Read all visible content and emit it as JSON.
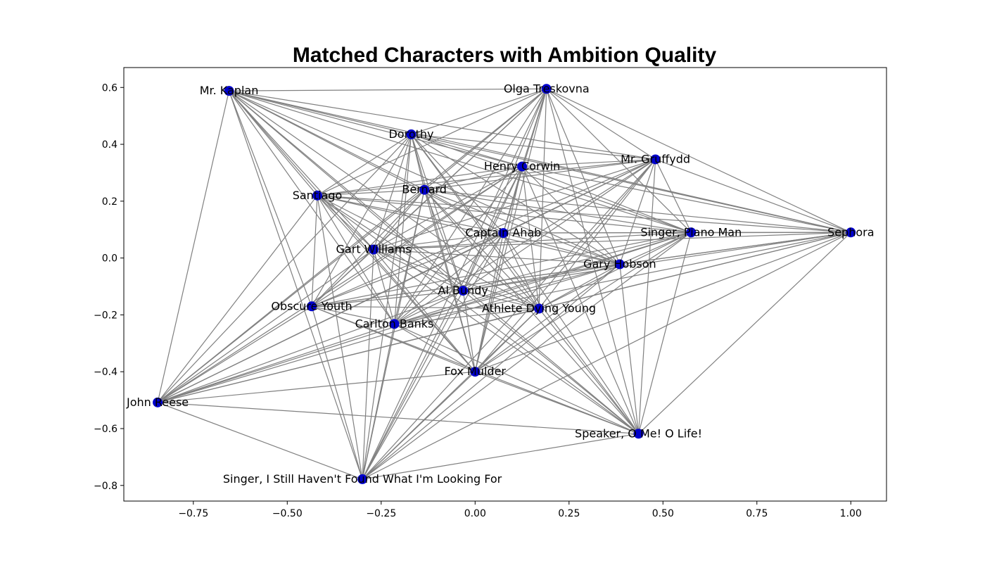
{
  "chart_data": {
    "type": "scatter",
    "subtype": "network-graph",
    "title": "Matched Characters with Ambition Quality",
    "xlabel": "",
    "ylabel": "",
    "xlim": [
      -0.935,
      1.095
    ],
    "ylim": [
      -0.855,
      0.67
    ],
    "xticks": [
      -0.75,
      -0.5,
      -0.25,
      0.0,
      0.25,
      0.5,
      0.75,
      1.0
    ],
    "xtick_labels": [
      "−0.75",
      "−0.50",
      "−0.25",
      "0.00",
      "0.25",
      "0.50",
      "0.75",
      "1.00"
    ],
    "yticks": [
      0.6,
      0.4,
      0.2,
      0.0,
      -0.2,
      -0.4,
      -0.6,
      -0.8
    ],
    "ytick_labels": [
      "0.6",
      "0.4",
      "0.2",
      "0.0",
      "−0.2",
      "−0.4",
      "−0.6",
      "−0.8"
    ],
    "grid": false,
    "node_color": "#0000cc",
    "edge_color": "#808080",
    "nodes": [
      {
        "name": "Mr. Kaplan",
        "x": -0.655,
        "y": 0.588
      },
      {
        "name": "Olga Treskovna",
        "x": 0.19,
        "y": 0.595
      },
      {
        "name": "Dorothy",
        "x": -0.17,
        "y": 0.435
      },
      {
        "name": "Mr. Gruffydd",
        "x": 0.48,
        "y": 0.347
      },
      {
        "name": "Henry Corwin",
        "x": 0.125,
        "y": 0.322
      },
      {
        "name": "Bernard",
        "x": -0.135,
        "y": 0.24
      },
      {
        "name": "Santiago",
        "x": -0.42,
        "y": 0.22
      },
      {
        "name": "Captain Ahab",
        "x": 0.075,
        "y": 0.088
      },
      {
        "name": "Singer, Piano Man",
        "x": 0.575,
        "y": 0.09
      },
      {
        "name": "Sephora",
        "x": 1.0,
        "y": 0.09
      },
      {
        "name": "Gart Williams",
        "x": -0.27,
        "y": 0.03
      },
      {
        "name": "Gary Hobson",
        "x": 0.385,
        "y": -0.022
      },
      {
        "name": "Al Bundy",
        "x": -0.032,
        "y": -0.115
      },
      {
        "name": "Obscure Youth",
        "x": -0.435,
        "y": -0.17
      },
      {
        "name": "Athlete Dying Young",
        "x": 0.17,
        "y": -0.178
      },
      {
        "name": "Carlton Banks",
        "x": -0.215,
        "y": -0.232
      },
      {
        "name": "Fox Mulder",
        "x": 0.0,
        "y": -0.4
      },
      {
        "name": "John Reese",
        "x": -0.845,
        "y": -0.508
      },
      {
        "name": "Speaker, O Me! O Life!",
        "x": 0.435,
        "y": -0.618
      },
      {
        "name": "Singer, I Still Haven't Found What I'm Looking For",
        "x": -0.3,
        "y": -0.778
      }
    ],
    "edges": "complete graph — every pair of nodes is connected"
  }
}
